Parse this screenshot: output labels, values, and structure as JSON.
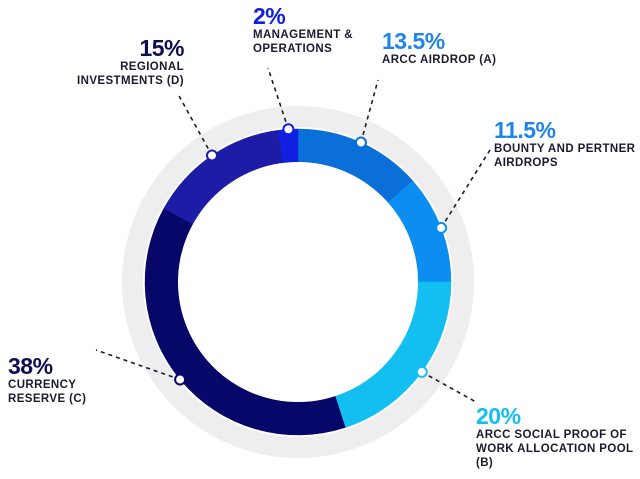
{
  "chart_data": {
    "type": "pie",
    "variant": "donut",
    "start_angle_deg": 90,
    "direction": "clockwise",
    "slices": [
      {
        "label": "ARCC AIRDROP (A)",
        "value": 13.5,
        "value_label": "13.5%",
        "color": "#0a6fd8",
        "label_color": "#1e86e8"
      },
      {
        "label": "BOUNTY AND PERTNER AIRDROPS",
        "value": 11.5,
        "value_label": "11.5%",
        "color": "#0b8ef0",
        "label_color": "#1e86e8"
      },
      {
        "label": "ARCC SOCIAL PROOF OF WORK ALLOCATION POOL (B)",
        "value": 20,
        "value_label": "20%",
        "color": "#12bff0",
        "label_color": "#12bff0"
      },
      {
        "label": "CURRENCY RESERVE (C)",
        "value": 38,
        "value_label": "38%",
        "color": "#07076a",
        "label_color": "#0e0e52"
      },
      {
        "label": "REGIONAL INVESTMENTS (D)",
        "value": 15,
        "value_label": "15%",
        "color": "#1c1ca6",
        "label_color": "#0e0e52"
      },
      {
        "label": "MANAGEMENT & OPERATIONS",
        "value": 2,
        "value_label": "2%",
        "color": "#1020e0",
        "label_color": "#1020e0"
      }
    ],
    "outer_ring_color": "#eeeeee"
  }
}
